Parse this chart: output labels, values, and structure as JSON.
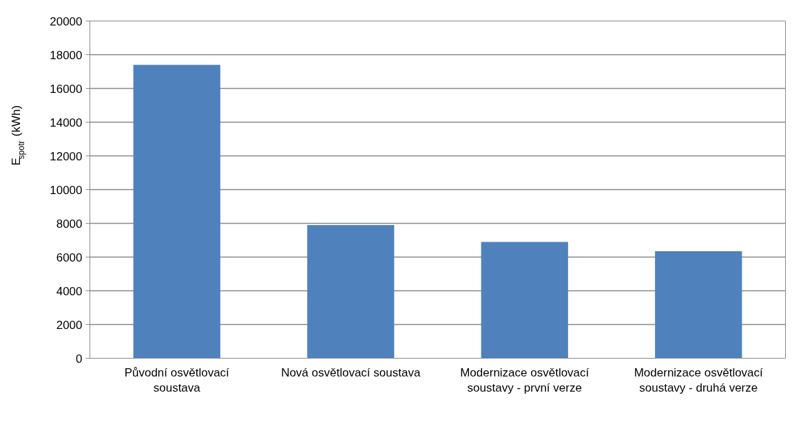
{
  "chart_data": {
    "type": "bar",
    "ylabel": "E$_{spotr}$ (kWh)",
    "categories": [
      "Původní osvětlovací soustava",
      "Nová osvětlovací soustava",
      "Modernizace osvětlovací soustavy - první verze",
      "Modernizace osvětlovací soustavy - druhá verze"
    ],
    "values": [
      17400,
      7900,
      6900,
      6350
    ],
    "color": "#4f81bd",
    "ylim": [
      0,
      20000
    ],
    "yticks": [
      0,
      2000,
      4000,
      6000,
      8000,
      10000,
      12000,
      14000,
      16000,
      18000,
      20000
    ],
    "grid": "y",
    "legend": false
  }
}
